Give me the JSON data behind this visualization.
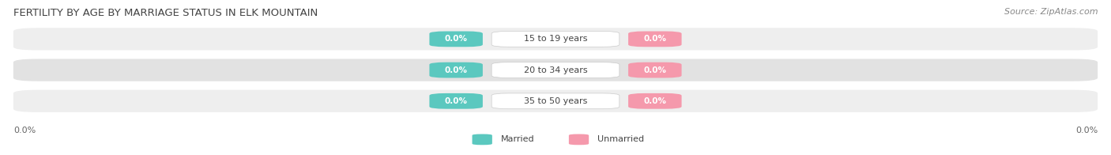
{
  "title": "FERTILITY BY AGE BY MARRIAGE STATUS IN ELK MOUNTAIN",
  "source": "Source: ZipAtlas.com",
  "categories": [
    "15 to 19 years",
    "20 to 34 years",
    "35 to 50 years"
  ],
  "married_values": [
    "0.0%",
    "0.0%",
    "0.0%"
  ],
  "unmarried_values": [
    "0.0%",
    "0.0%",
    "0.0%"
  ],
  "married_color": "#5BC8BF",
  "unmarried_color": "#F599AC",
  "row_bg_color_odd": "#EEEEEE",
  "row_bg_color_even": "#E2E2E2",
  "axis_left_label": "0.0%",
  "axis_right_label": "0.0%",
  "title_fontsize": 9.5,
  "source_fontsize": 8,
  "legend_married": "Married",
  "legend_unmarried": "Unmarried",
  "value_fontsize": 7.5,
  "cat_fontsize": 8,
  "legend_fontsize": 8
}
